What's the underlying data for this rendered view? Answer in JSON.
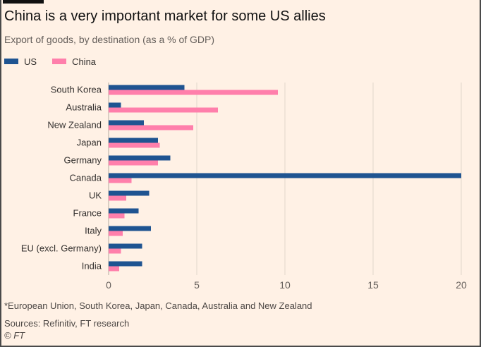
{
  "title": "China is a very important market for some US allies",
  "subtitle": "Export of goods, by destination (as a % of GDP)",
  "footnote": "*European Union, South Korea, Japan, Canada, Australia and New Zealand",
  "source": "Sources: Refinitiv, FT research",
  "credit": "© FT",
  "colors": {
    "us": "#1f5491",
    "china": "#ff7fab",
    "gridline": "#e0d6cc",
    "axis_text": "#66605c"
  },
  "chart_data": {
    "type": "bar",
    "orientation": "horizontal",
    "categories": [
      "South Korea",
      "Australia",
      "New Zealand",
      "Japan",
      "Germany",
      "Canada",
      "UK",
      "France",
      "Italy",
      "EU (excl. Germany)",
      "India"
    ],
    "series": [
      {
        "name": "US",
        "color": "#1f5491",
        "values": [
          4.3,
          0.7,
          2.0,
          2.8,
          3.5,
          20.0,
          2.3,
          1.7,
          2.4,
          1.9,
          1.9
        ]
      },
      {
        "name": "China",
        "color": "#ff7fab",
        "values": [
          9.6,
          6.2,
          4.8,
          2.9,
          2.8,
          1.3,
          1.0,
          0.9,
          0.8,
          0.7,
          0.6
        ]
      }
    ],
    "xlim": [
      0,
      20
    ],
    "xticks": [
      0,
      5,
      10,
      15,
      20
    ],
    "grid": true,
    "legend_position": "top-left"
  }
}
